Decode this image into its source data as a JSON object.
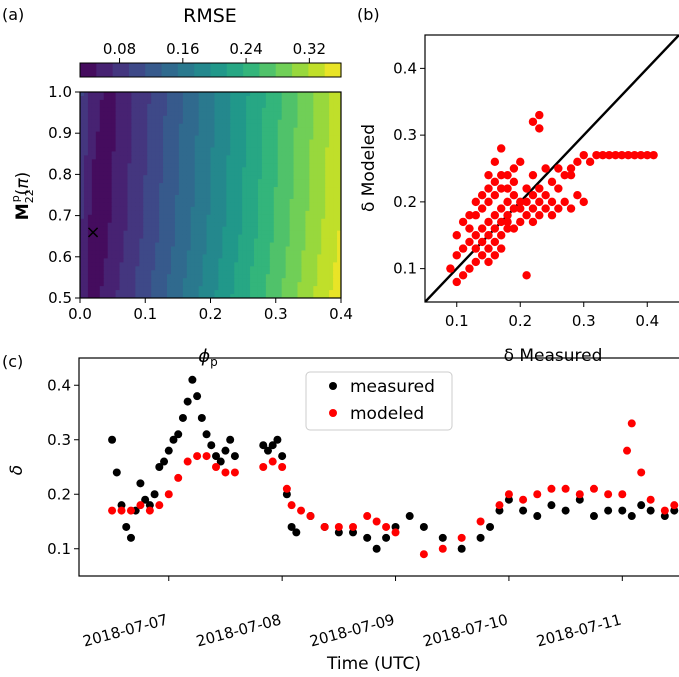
{
  "panels": {
    "a": {
      "label": "(a)"
    },
    "b": {
      "label": "(b)"
    },
    "c": {
      "label": "(c)"
    }
  },
  "colorbar": {
    "title": "RMSE",
    "ticks": [
      "0.08",
      "0.16",
      "0.24",
      "0.32"
    ],
    "tick_values": [
      0.08,
      0.16,
      0.24,
      0.32
    ],
    "range": [
      0.03,
      0.36
    ],
    "colormap": "viridis"
  },
  "chart_data": [
    {
      "panel": "a",
      "type": "heatmap",
      "xlabel": "ϕp",
      "ylabel": "M22p(π)",
      "xlim": [
        0.0,
        0.4
      ],
      "ylim": [
        0.5,
        1.0
      ],
      "xticks": [
        "0.0",
        "0.1",
        "0.2",
        "0.3",
        "0.4"
      ],
      "xtick_values": [
        0.0,
        0.1,
        0.2,
        0.3,
        0.4
      ],
      "yticks": [
        "0.5",
        "0.6",
        "0.7",
        "0.8",
        "0.9",
        "1.0"
      ],
      "ytick_values": [
        0.5,
        0.6,
        0.7,
        0.8,
        0.9,
        1.0
      ],
      "levels": 16,
      "value_range": [
        0.03,
        0.36
      ],
      "minimum_marker": {
        "x": 0.02,
        "y": 0.66,
        "symbol": "×",
        "color": "#dd1111"
      }
    },
    {
      "panel": "b",
      "type": "scatter",
      "xlabel": "δ Measured",
      "ylabel": "δ Modeled",
      "xlim": [
        0.05,
        0.45
      ],
      "ylim": [
        0.05,
        0.45
      ],
      "xticks": [
        "0.1",
        "0.2",
        "0.3",
        "0.4"
      ],
      "xtick_values": [
        0.1,
        0.2,
        0.3,
        0.4
      ],
      "yticks": [
        "0.1",
        "0.2",
        "0.3",
        "0.4"
      ],
      "ytick_values": [
        0.1,
        0.2,
        0.3,
        0.4
      ],
      "one_to_one_line": true,
      "color": "#ff0000",
      "points": [
        [
          0.09,
          0.1
        ],
        [
          0.1,
          0.08
        ],
        [
          0.1,
          0.12
        ],
        [
          0.11,
          0.09
        ],
        [
          0.11,
          0.13
        ],
        [
          0.12,
          0.1
        ],
        [
          0.12,
          0.14
        ],
        [
          0.12,
          0.16
        ],
        [
          0.13,
          0.11
        ],
        [
          0.13,
          0.13
        ],
        [
          0.13,
          0.15
        ],
        [
          0.13,
          0.18
        ],
        [
          0.14,
          0.12
        ],
        [
          0.14,
          0.14
        ],
        [
          0.14,
          0.16
        ],
        [
          0.14,
          0.19
        ],
        [
          0.14,
          0.21
        ],
        [
          0.15,
          0.13
        ],
        [
          0.15,
          0.15
        ],
        [
          0.15,
          0.17
        ],
        [
          0.15,
          0.2
        ],
        [
          0.15,
          0.22
        ],
        [
          0.15,
          0.24
        ],
        [
          0.16,
          0.14
        ],
        [
          0.16,
          0.16
        ],
        [
          0.16,
          0.18
        ],
        [
          0.16,
          0.21
        ],
        [
          0.16,
          0.23
        ],
        [
          0.16,
          0.26
        ],
        [
          0.17,
          0.15
        ],
        [
          0.17,
          0.17
        ],
        [
          0.17,
          0.19
        ],
        [
          0.17,
          0.22
        ],
        [
          0.17,
          0.24
        ],
        [
          0.17,
          0.28
        ],
        [
          0.18,
          0.16
        ],
        [
          0.18,
          0.18
        ],
        [
          0.18,
          0.2
        ],
        [
          0.18,
          0.22
        ],
        [
          0.18,
          0.17
        ],
        [
          0.19,
          0.16
        ],
        [
          0.19,
          0.19
        ],
        [
          0.19,
          0.21
        ],
        [
          0.19,
          0.23
        ],
        [
          0.2,
          0.17
        ],
        [
          0.2,
          0.19
        ],
        [
          0.2,
          0.2
        ],
        [
          0.21,
          0.18
        ],
        [
          0.21,
          0.2
        ],
        [
          0.21,
          0.22
        ],
        [
          0.22,
          0.17
        ],
        [
          0.22,
          0.19
        ],
        [
          0.22,
          0.21
        ],
        [
          0.23,
          0.18
        ],
        [
          0.23,
          0.2
        ],
        [
          0.23,
          0.22
        ],
        [
          0.24,
          0.19
        ],
        [
          0.24,
          0.21
        ],
        [
          0.25,
          0.18
        ],
        [
          0.25,
          0.2
        ],
        [
          0.25,
          0.23
        ],
        [
          0.26,
          0.19
        ],
        [
          0.26,
          0.22
        ],
        [
          0.27,
          0.2
        ],
        [
          0.27,
          0.24
        ],
        [
          0.28,
          0.19
        ],
        [
          0.28,
          0.25
        ],
        [
          0.29,
          0.21
        ],
        [
          0.29,
          0.26
        ],
        [
          0.3,
          0.2
        ],
        [
          0.3,
          0.27
        ],
        [
          0.31,
          0.26
        ],
        [
          0.32,
          0.27
        ],
        [
          0.33,
          0.27
        ],
        [
          0.34,
          0.27
        ],
        [
          0.35,
          0.27
        ],
        [
          0.36,
          0.27
        ],
        [
          0.37,
          0.27
        ],
        [
          0.38,
          0.27
        ],
        [
          0.39,
          0.27
        ],
        [
          0.4,
          0.27
        ],
        [
          0.41,
          0.27
        ],
        [
          0.22,
          0.32
        ],
        [
          0.23,
          0.33
        ],
        [
          0.23,
          0.31
        ],
        [
          0.21,
          0.09
        ],
        [
          0.2,
          0.26
        ],
        [
          0.19,
          0.25
        ],
        [
          0.18,
          0.24
        ],
        [
          0.24,
          0.25
        ],
        [
          0.26,
          0.25
        ],
        [
          0.28,
          0.24
        ],
        [
          0.22,
          0.24
        ],
        [
          0.15,
          0.11
        ],
        [
          0.16,
          0.12
        ],
        [
          0.17,
          0.13
        ],
        [
          0.12,
          0.18
        ],
        [
          0.11,
          0.17
        ],
        [
          0.1,
          0.15
        ],
        [
          0.13,
          0.2
        ]
      ]
    },
    {
      "panel": "c",
      "type": "scatter",
      "xlabel": "Time (UTC)",
      "ylabel": "δ",
      "xlim": [
        "2018-07-06T05:00",
        "2018-07-11T12:00"
      ],
      "ylim": [
        0.05,
        0.45
      ],
      "xticks": [
        "2018-07-07",
        "2018-07-08",
        "2018-07-09",
        "2018-07-10",
        "2018-07-11"
      ],
      "xtick_values": [
        "2018-07-07T00:00",
        "2018-07-08T00:00",
        "2018-07-09T00:00",
        "2018-07-10T00:00",
        "2018-07-11T00:00"
      ],
      "yticks": [
        "0.1",
        "0.2",
        "0.3",
        "0.4"
      ],
      "ytick_values": [
        0.1,
        0.2,
        0.3,
        0.4
      ],
      "legend": "top-center",
      "series": [
        {
          "name": "measured",
          "color": "#000000",
          "points": [
            [
              "2018-07-06T12:00",
              0.3
            ],
            [
              "2018-07-06T13:00",
              0.24
            ],
            [
              "2018-07-06T14:00",
              0.18
            ],
            [
              "2018-07-06T15:00",
              0.14
            ],
            [
              "2018-07-06T16:00",
              0.12
            ],
            [
              "2018-07-06T17:00",
              0.17
            ],
            [
              "2018-07-06T18:00",
              0.22
            ],
            [
              "2018-07-06T19:00",
              0.19
            ],
            [
              "2018-07-06T20:00",
              0.18
            ],
            [
              "2018-07-06T21:00",
              0.2
            ],
            [
              "2018-07-06T22:00",
              0.25
            ],
            [
              "2018-07-06T23:00",
              0.26
            ],
            [
              "2018-07-07T00:00",
              0.28
            ],
            [
              "2018-07-07T01:00",
              0.3
            ],
            [
              "2018-07-07T02:00",
              0.31
            ],
            [
              "2018-07-07T03:00",
              0.34
            ],
            [
              "2018-07-07T04:00",
              0.37
            ],
            [
              "2018-07-07T05:00",
              0.41
            ],
            [
              "2018-07-07T06:00",
              0.38
            ],
            [
              "2018-07-07T07:00",
              0.34
            ],
            [
              "2018-07-07T08:00",
              0.31
            ],
            [
              "2018-07-07T09:00",
              0.29
            ],
            [
              "2018-07-07T10:00",
              0.27
            ],
            [
              "2018-07-07T11:00",
              0.26
            ],
            [
              "2018-07-07T12:00",
              0.28
            ],
            [
              "2018-07-07T13:00",
              0.3
            ],
            [
              "2018-07-07T14:00",
              0.27
            ],
            [
              "2018-07-07T20:00",
              0.29
            ],
            [
              "2018-07-07T21:00",
              0.28
            ],
            [
              "2018-07-07T22:00",
              0.29
            ],
            [
              "2018-07-07T23:00",
              0.3
            ],
            [
              "2018-07-08T00:00",
              0.27
            ],
            [
              "2018-07-08T01:00",
              0.2
            ],
            [
              "2018-07-08T02:00",
              0.14
            ],
            [
              "2018-07-08T03:00",
              0.13
            ],
            [
              "2018-07-08T06:00",
              0.16
            ],
            [
              "2018-07-08T09:00",
              0.14
            ],
            [
              "2018-07-08T12:00",
              0.13
            ],
            [
              "2018-07-08T15:00",
              0.13
            ],
            [
              "2018-07-08T18:00",
              0.12
            ],
            [
              "2018-07-08T20:00",
              0.1
            ],
            [
              "2018-07-08T22:00",
              0.12
            ],
            [
              "2018-07-09T00:00",
              0.14
            ],
            [
              "2018-07-09T03:00",
              0.16
            ],
            [
              "2018-07-09T06:00",
              0.14
            ],
            [
              "2018-07-09T10:00",
              0.12
            ],
            [
              "2018-07-09T14:00",
              0.1
            ],
            [
              "2018-07-09T18:00",
              0.12
            ],
            [
              "2018-07-09T20:00",
              0.14
            ],
            [
              "2018-07-09T22:00",
              0.17
            ],
            [
              "2018-07-10T00:00",
              0.19
            ],
            [
              "2018-07-10T03:00",
              0.17
            ],
            [
              "2018-07-10T06:00",
              0.16
            ],
            [
              "2018-07-10T09:00",
              0.18
            ],
            [
              "2018-07-10T12:00",
              0.17
            ],
            [
              "2018-07-10T15:00",
              0.19
            ],
            [
              "2018-07-10T18:00",
              0.16
            ],
            [
              "2018-07-10T21:00",
              0.17
            ],
            [
              "2018-07-11T00:00",
              0.17
            ],
            [
              "2018-07-11T02:00",
              0.16
            ],
            [
              "2018-07-11T04:00",
              0.18
            ],
            [
              "2018-07-11T06:00",
              0.17
            ],
            [
              "2018-07-11T09:00",
              0.16
            ],
            [
              "2018-07-11T11:00",
              0.17
            ]
          ]
        },
        {
          "name": "modeled",
          "color": "#ff0000",
          "points": [
            [
              "2018-07-06T12:00",
              0.17
            ],
            [
              "2018-07-06T14:00",
              0.17
            ],
            [
              "2018-07-06T16:00",
              0.17
            ],
            [
              "2018-07-06T18:00",
              0.18
            ],
            [
              "2018-07-06T20:00",
              0.17
            ],
            [
              "2018-07-06T22:00",
              0.18
            ],
            [
              "2018-07-07T00:00",
              0.2
            ],
            [
              "2018-07-07T02:00",
              0.23
            ],
            [
              "2018-07-07T04:00",
              0.26
            ],
            [
              "2018-07-07T06:00",
              0.27
            ],
            [
              "2018-07-07T08:00",
              0.27
            ],
            [
              "2018-07-07T10:00",
              0.25
            ],
            [
              "2018-07-07T12:00",
              0.24
            ],
            [
              "2018-07-07T14:00",
              0.24
            ],
            [
              "2018-07-07T20:00",
              0.25
            ],
            [
              "2018-07-07T22:00",
              0.26
            ],
            [
              "2018-07-08T00:00",
              0.25
            ],
            [
              "2018-07-08T01:00",
              0.21
            ],
            [
              "2018-07-08T02:00",
              0.18
            ],
            [
              "2018-07-08T04:00",
              0.17
            ],
            [
              "2018-07-08T06:00",
              0.16
            ],
            [
              "2018-07-08T09:00",
              0.14
            ],
            [
              "2018-07-08T12:00",
              0.14
            ],
            [
              "2018-07-08T15:00",
              0.14
            ],
            [
              "2018-07-08T18:00",
              0.16
            ],
            [
              "2018-07-08T20:00",
              0.15
            ],
            [
              "2018-07-08T22:00",
              0.14
            ],
            [
              "2018-07-09T00:00",
              0.13
            ],
            [
              "2018-07-09T06:00",
              0.09
            ],
            [
              "2018-07-09T10:00",
              0.1
            ],
            [
              "2018-07-09T14:00",
              0.12
            ],
            [
              "2018-07-09T18:00",
              0.15
            ],
            [
              "2018-07-09T22:00",
              0.18
            ],
            [
              "2018-07-10T00:00",
              0.2
            ],
            [
              "2018-07-10T03:00",
              0.19
            ],
            [
              "2018-07-10T06:00",
              0.2
            ],
            [
              "2018-07-10T09:00",
              0.21
            ],
            [
              "2018-07-10T12:00",
              0.21
            ],
            [
              "2018-07-10T15:00",
              0.2
            ],
            [
              "2018-07-10T18:00",
              0.21
            ],
            [
              "2018-07-10T21:00",
              0.2
            ],
            [
              "2018-07-11T00:00",
              0.2
            ],
            [
              "2018-07-11T01:00",
              0.28
            ],
            [
              "2018-07-11T02:00",
              0.33
            ],
            [
              "2018-07-11T04:00",
              0.24
            ],
            [
              "2018-07-11T06:00",
              0.19
            ],
            [
              "2018-07-11T09:00",
              0.17
            ],
            [
              "2018-07-11T11:00",
              0.18
            ]
          ]
        }
      ]
    }
  ]
}
